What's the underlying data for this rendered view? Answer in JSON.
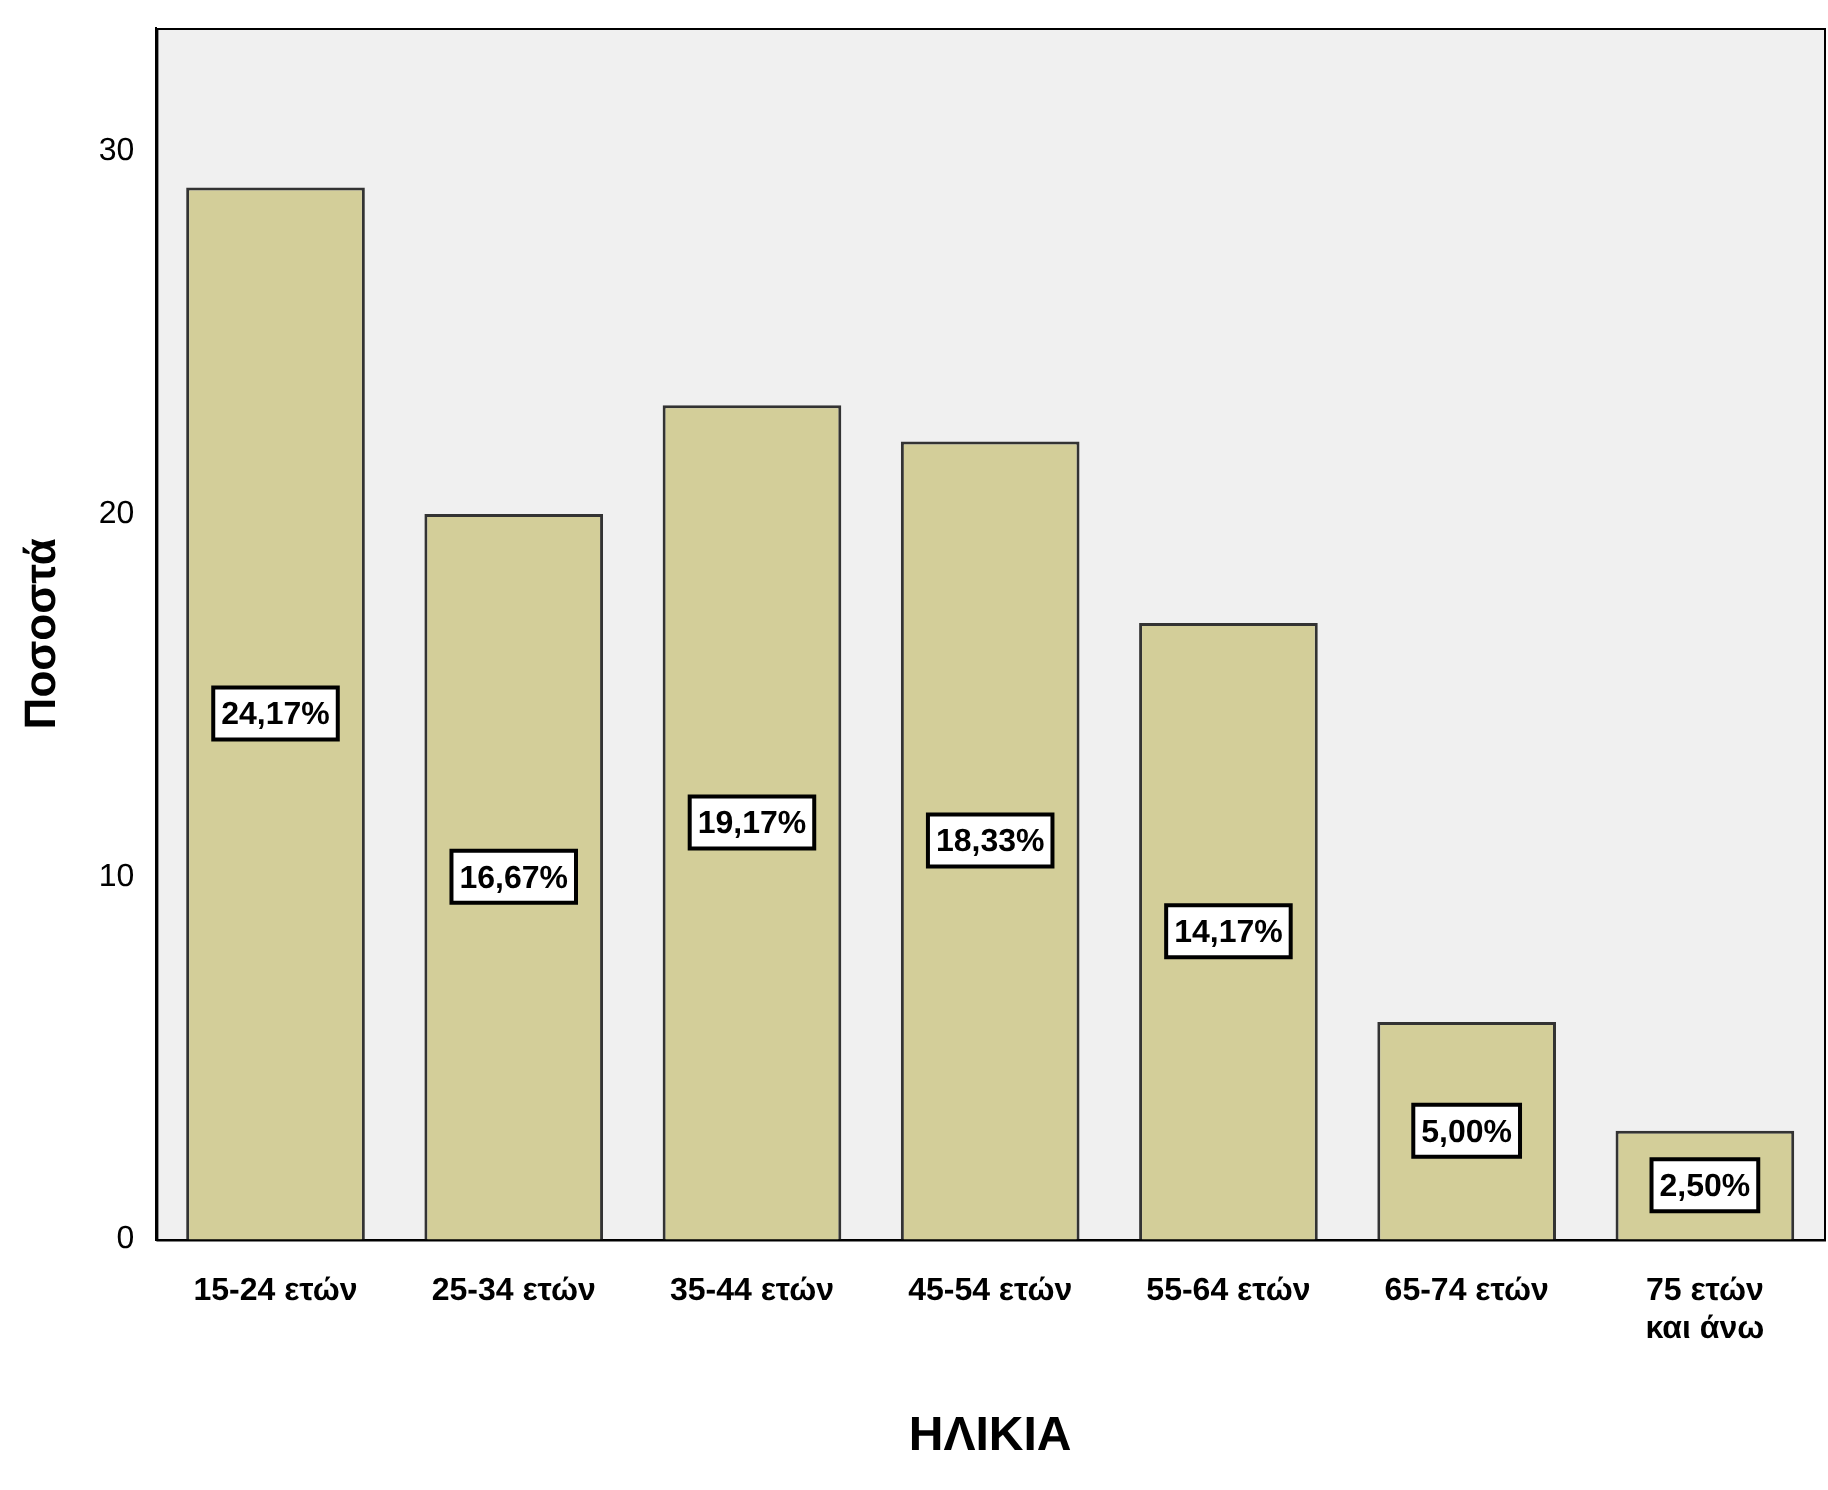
{
  "chart_data": {
    "type": "bar",
    "xlabel": "ΗΛΙΚΙΑ",
    "ylabel": "Ποσοστά",
    "categories": [
      "15-24 ετών",
      "25-34 ετών",
      "35-44 ετών",
      "45-54 ετών",
      "55-64 ετών",
      "65-74 ετών",
      "75 ετών\nκαι άνω"
    ],
    "values": [
      29,
      20,
      23,
      22,
      17,
      6,
      3
    ],
    "annotations": [
      "24,17%",
      "16,67%",
      "19,17%",
      "18,33%",
      "14,17%",
      "5,00%",
      "2,50%"
    ],
    "color": "#d3ce99",
    "ylim": [
      0,
      33.4
    ],
    "yticks": [
      0,
      10,
      20,
      30
    ],
    "grid": false,
    "legend": false
  }
}
